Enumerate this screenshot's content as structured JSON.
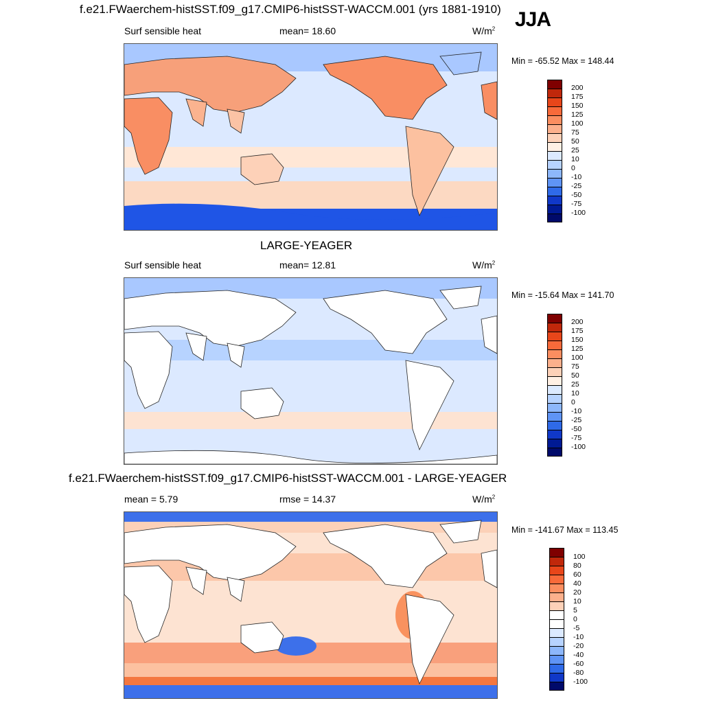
{
  "panels": [
    {
      "title": "f.e21.FWaerchem-histSST.f09_g17.CMIP6-histSST-WACCM.001 (yrs 1881-1910)",
      "left_label": "Surf sensible heat",
      "center_label": "mean=  18.60",
      "units": "W/m",
      "units_sup": "2",
      "minmax": "Min = -65.52 Max = 148.44",
      "colorbar_levels": [
        "200",
        "175",
        "150",
        "125",
        "100",
        "75",
        "50",
        "25",
        "10",
        "0",
        "-10",
        "-25",
        "-50",
        "-75",
        "-100"
      ],
      "colorbar_colors": [
        "#7f0000",
        "#c0280b",
        "#e8461a",
        "#f86a3a",
        "#fb8e60",
        "#fcb08c",
        "#fdd1b8",
        "#fff0e4",
        "#dceaff",
        "#b7d3ff",
        "#8db7fb",
        "#5f94f5",
        "#2f6ae8",
        "#1038c8",
        "#001a94",
        "#000a6a"
      ],
      "land_fill": "#fcc1a0"
    },
    {
      "title": "LARGE-YEAGER",
      "left_label": "Surf sensible heat",
      "center_label": "mean=  12.81",
      "units": "W/m",
      "units_sup": "2",
      "minmax": "Min = -15.64 Max = 141.70",
      "colorbar_levels": [
        "200",
        "175",
        "150",
        "125",
        "100",
        "75",
        "50",
        "25",
        "10",
        "0",
        "-10",
        "-25",
        "-50",
        "-75",
        "-100"
      ],
      "colorbar_colors": [
        "#7f0000",
        "#c0280b",
        "#e8461a",
        "#f86a3a",
        "#fb8e60",
        "#fcb08c",
        "#fdd1b8",
        "#fff0e4",
        "#dceaff",
        "#b7d3ff",
        "#8db7fb",
        "#5f94f5",
        "#2f6ae8",
        "#1038c8",
        "#001a94",
        "#000a6a"
      ],
      "land_fill": "#ffffff"
    },
    {
      "title": "f.e21.FWaerchem-histSST.f09_g17.CMIP6-histSST-WACCM.001 - LARGE-YEAGER",
      "left_label": "mean =   5.79",
      "center_label": "rmse =  14.37",
      "units": "W/m",
      "units_sup": "2",
      "minmax": "Min = -141.67 Max = 113.45",
      "colorbar_levels": [
        "100",
        "80",
        "60",
        "40",
        "20",
        "10",
        "5",
        "0",
        "-5",
        "-10",
        "-20",
        "-40",
        "-60",
        "-80",
        "-100"
      ],
      "colorbar_colors": [
        "#7f0000",
        "#c0280b",
        "#e8461a",
        "#f86a3a",
        "#fb8e60",
        "#fcb08c",
        "#fdd1b8",
        "#ffffff",
        "#ffffff",
        "#dceaff",
        "#b7d3ff",
        "#8db7fb",
        "#5f94f5",
        "#2f6ae8",
        "#1038c8",
        "#000a6a"
      ],
      "land_fill": "#ffffff"
    }
  ],
  "season": "JJA"
}
